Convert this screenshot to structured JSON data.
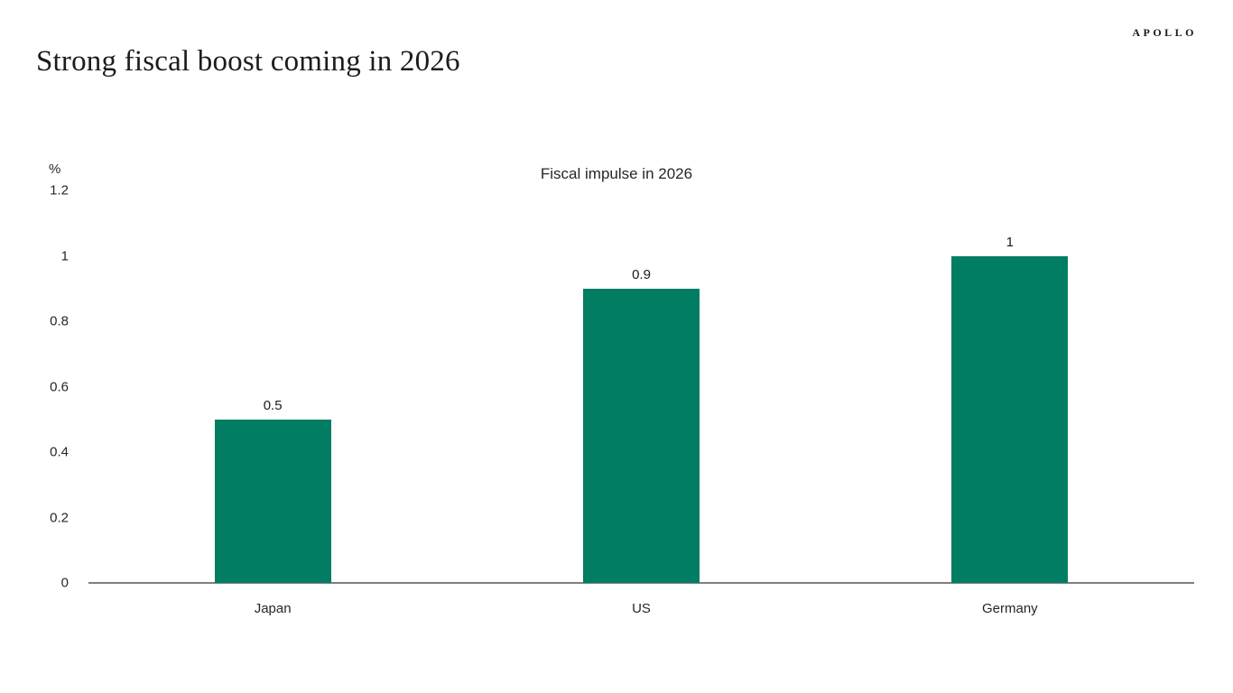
{
  "header": {
    "title": "Strong fiscal boost coming in 2026",
    "logo": "APOLLO"
  },
  "chart_data": {
    "type": "bar",
    "title": "Fiscal impulse in 2026",
    "unit_label": "%",
    "categories": [
      "Japan",
      "US",
      "Germany"
    ],
    "values": [
      0.5,
      0.9,
      1
    ],
    "value_labels": [
      "0.5",
      "0.9",
      "1"
    ],
    "ylim": [
      0,
      1.2
    ],
    "ytick_labels": [
      "0",
      "0.2",
      "0.4",
      "0.6",
      "0.8",
      "1",
      "1.2"
    ],
    "ytick_values": [
      0,
      0.2,
      0.4,
      0.6,
      0.8,
      1,
      1.2
    ],
    "bar_color": "#007d63",
    "axis_color": "#7f7f7f",
    "grid": false,
    "legend": false
  }
}
